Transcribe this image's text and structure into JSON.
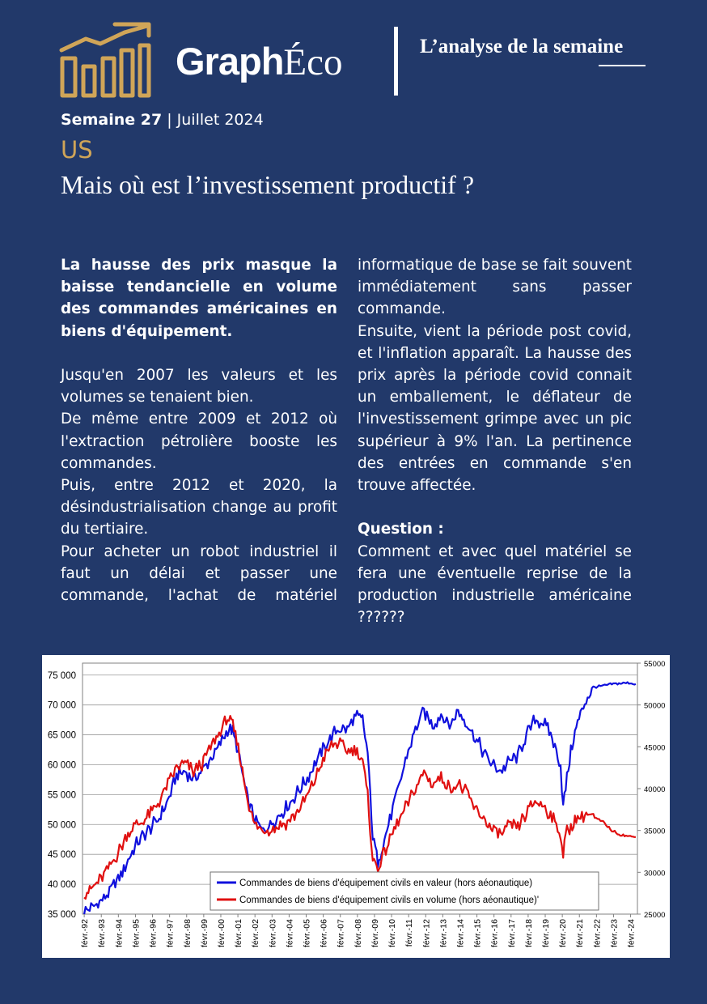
{
  "header": {
    "brand_part1": "Graph",
    "brand_part2": "Éco",
    "tagline": "L’analyse de la semaine",
    "issue_week": "Semaine 27",
    "issue_sep": " | ",
    "issue_month": "Juillet 2024",
    "country": "US",
    "title": "Mais où est l’investissement productif ?",
    "colors": {
      "background": "#22396a",
      "accent": "#d0a558"
    },
    "logo_icon": "bar-chart-growth-icon"
  },
  "article": {
    "lead": "La hausse des prix masque la baisse tendancielle en volume des commandes américaines en biens d'équipement.",
    "paragraphs": [
      "Jusqu'en 2007 les valeurs et les volumes se tenaient bien.",
      "De même entre 2009 et 2012 où l'extraction pétrolière booste les commandes.",
      "Puis, entre 2012 et 2020, la désindustrialisation change au profit du tertiaire.",
      "Pour acheter un robot industriel il faut un délai et passer une commande, l'achat de matériel",
      "informatique de base se fait souvent immédiatement sans passer commande.",
      "Ensuite, vient la période post covid, et l'inflation apparaît. La hausse des prix après la période covid connait un emballement, le déflateur de l'investissement grimpe avec un pic supérieur à 9% l'an. La pertinence des entrées en commande s'en trouve affectée."
    ],
    "question_label": "Question :",
    "question_text": "Comment et avec quel matériel se fera une éventuelle reprise de la production industrielle américaine ??????"
  },
  "chart_data": {
    "type": "line",
    "title": "",
    "xlabel": "",
    "ylabel": "",
    "grid": true,
    "legend_position": "bottom-center",
    "x_tick_labels": [
      "févr.-92",
      "févr.-93",
      "févr.-94",
      "févr.-95",
      "févr.-96",
      "févr.-97",
      "févr.-98",
      "févr.-99",
      "févr.-00",
      "févr.-01",
      "févr.-02",
      "févr.-03",
      "févr.-04",
      "févr.-05",
      "févr.-06",
      "févr.-07",
      "févr.-08",
      "févr.-09",
      "févr.-10",
      "févr.-11",
      "févr.-12",
      "févr.-13",
      "févr.-14",
      "févr.-15",
      "févr.-16",
      "févr.-17",
      "févr.-18",
      "févr.-19",
      "févr.-20",
      "févr.-21",
      "févr.-22",
      "févr.-23",
      "févr.-24"
    ],
    "x_range": [
      1992.0,
      2024.5
    ],
    "y_left": {
      "range": [
        35000,
        77000
      ],
      "ticks": [
        35000,
        40000,
        45000,
        50000,
        55000,
        60000,
        65000,
        70000,
        75000
      ],
      "tick_labels": [
        "35 000",
        "40 000",
        "45 000",
        "50 000",
        "55 000",
        "60 000",
        "65 000",
        "70 000",
        "75 000"
      ]
    },
    "y_right": {
      "range": [
        25000,
        55000
      ],
      "ticks": [
        25000,
        30000,
        35000,
        40000,
        45000,
        50000,
        55000
      ],
      "tick_labels": [
        "25000",
        "30000",
        "35000",
        "40000",
        "45000",
        "50000",
        "55000"
      ]
    },
    "series": [
      {
        "name": "Commandes de biens d'équipement civils en valeur (hors aéonautique)",
        "axis": "left",
        "color": "#1010dd",
        "x": [
          1992.1,
          1992.5,
          1993.0,
          1993.5,
          1994.0,
          1994.5,
          1995.0,
          1995.5,
          1996.0,
          1996.5,
          1997.0,
          1997.5,
          1998.0,
          1998.5,
          1999.0,
          1999.5,
          2000.0,
          2000.5,
          2000.8,
          2001.2,
          2001.6,
          2002.0,
          2002.5,
          2003.0,
          2003.5,
          2004.0,
          2004.5,
          2005.0,
          2005.5,
          2006.0,
          2006.5,
          2007.0,
          2007.5,
          2008.0,
          2008.4,
          2008.7,
          2009.0,
          2009.3,
          2009.6,
          2010.0,
          2010.5,
          2011.0,
          2011.5,
          2012.0,
          2012.5,
          2013.0,
          2013.5,
          2014.0,
          2014.5,
          2015.0,
          2015.5,
          2016.0,
          2016.5,
          2017.0,
          2017.5,
          2018.0,
          2018.5,
          2019.0,
          2019.5,
          2020.0,
          2020.15,
          2020.3,
          2020.6,
          2021.0,
          2021.5,
          2022.0,
          2022.5,
          2023.0,
          2023.5,
          2024.0,
          2024.4
        ],
        "values": [
          35500,
          36000,
          37000,
          38500,
          40500,
          43000,
          46000,
          48000,
          49500,
          51000,
          54000,
          58000,
          59000,
          57500,
          59000,
          61000,
          63000,
          66000,
          65500,
          61000,
          55000,
          51500,
          49000,
          50000,
          51500,
          53000,
          55000,
          57000,
          59500,
          62000,
          64500,
          66000,
          66000,
          68000,
          67500,
          62000,
          48000,
          44000,
          46500,
          51000,
          56000,
          61500,
          66000,
          69000,
          66500,
          68500,
          66500,
          69000,
          67000,
          64500,
          62000,
          60000,
          59000,
          60500,
          61500,
          65000,
          67500,
          67000,
          64500,
          60000,
          53000,
          56000,
          62500,
          67000,
          71000,
          73000,
          73200,
          73500,
          73600,
          73700,
          73500
        ]
      },
      {
        "name": "Commandes de biens d'équipement civils en volume (hors aéonautique)'",
        "axis": "right",
        "color": "#e01010",
        "x": [
          1992.1,
          1992.5,
          1993.0,
          1993.5,
          1994.0,
          1994.5,
          1995.0,
          1995.5,
          1996.0,
          1996.5,
          1997.0,
          1997.5,
          1998.0,
          1998.5,
          1999.0,
          1999.5,
          2000.0,
          2000.5,
          2000.8,
          2001.2,
          2001.6,
          2002.0,
          2002.5,
          2003.0,
          2003.5,
          2004.0,
          2004.5,
          2005.0,
          2005.5,
          2006.0,
          2006.5,
          2007.0,
          2007.5,
          2008.0,
          2008.4,
          2008.7,
          2009.0,
          2009.3,
          2009.6,
          2010.0,
          2010.5,
          2011.0,
          2011.5,
          2012.0,
          2012.5,
          2013.0,
          2013.5,
          2014.0,
          2014.5,
          2015.0,
          2015.5,
          2016.0,
          2016.5,
          2017.0,
          2017.5,
          2018.0,
          2018.5,
          2019.0,
          2019.5,
          2020.0,
          2020.15,
          2020.3,
          2020.6,
          2021.0,
          2021.5,
          2022.0,
          2022.5,
          2023.0,
          2023.5,
          2024.0,
          2024.4
        ],
        "values": [
          27500,
          28000,
          29000,
          30500,
          32000,
          34000,
          35500,
          36000,
          37000,
          38500,
          40500,
          42500,
          43000,
          42000,
          43000,
          45000,
          46500,
          48500,
          47500,
          44000,
          39500,
          36000,
          35000,
          35200,
          35500,
          36000,
          37000,
          38500,
          40500,
          43000,
          45000,
          45500,
          44500,
          44500,
          43500,
          39000,
          31500,
          30500,
          32000,
          34000,
          36000,
          38000,
          40000,
          42000,
          40500,
          41500,
          40000,
          40500,
          39500,
          37500,
          36500,
          35000,
          34500,
          35500,
          35500,
          37000,
          38500,
          38000,
          36500,
          34500,
          32000,
          34500,
          35500,
          36500,
          37000,
          36500,
          36000,
          35000,
          34500,
          34300,
          34200
        ]
      }
    ]
  }
}
